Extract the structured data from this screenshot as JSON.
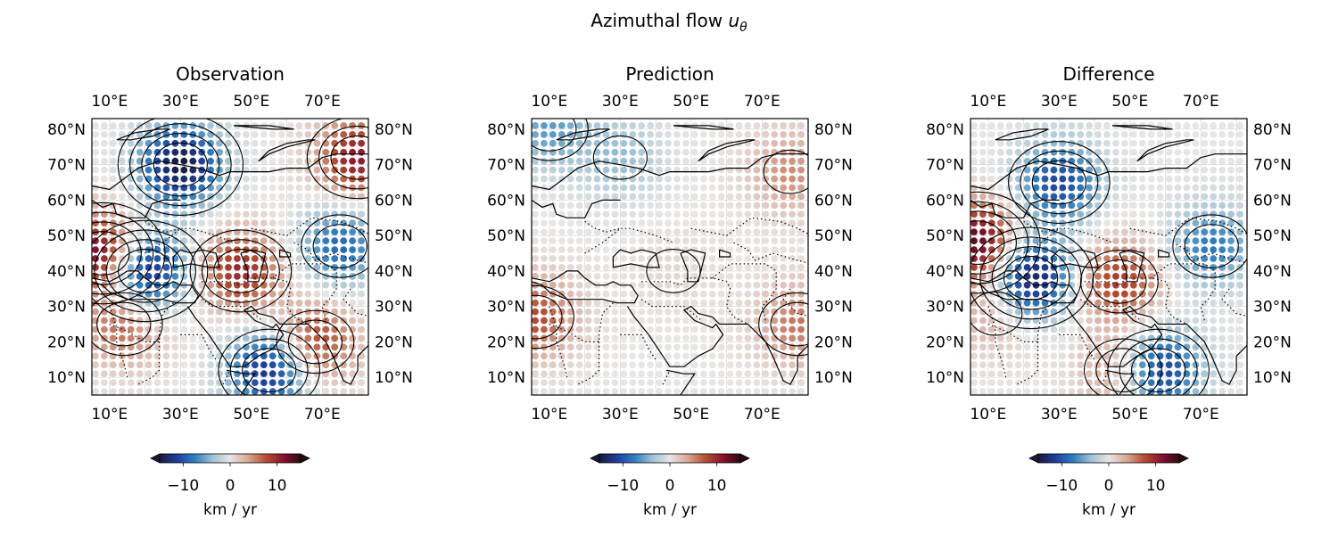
{
  "figure": {
    "title_prefix": "Azimuthal flow ",
    "title_symbol": "u",
    "title_subscript": "θ"
  },
  "colormap": {
    "name": "diverging blue-white-red",
    "stops": [
      "#1a1a3a",
      "#1f3f9e",
      "#2f7fc2",
      "#9fc2d4",
      "#e8e6e4",
      "#d8a898",
      "#b85030",
      "#8a1030",
      "#2a0a10"
    ]
  },
  "chart_data": [
    {
      "type": "heatmap",
      "title": "Observation",
      "x_tick_labels": [
        "10°E",
        "30°E",
        "50°E",
        "70°E"
      ],
      "y_tick_labels": [
        "10°N",
        "20°N",
        "30°N",
        "40°N",
        "50°N",
        "60°N",
        "70°N",
        "80°N"
      ],
      "xlim": [
        5,
        83
      ],
      "ylim": [
        5,
        83
      ],
      "grid": true,
      "colorbar": {
        "label": "km / yr",
        "ticks": [
          "−10",
          "0",
          "10"
        ],
        "range": [
          -15,
          15
        ],
        "extend": "both"
      },
      "field_features": [
        {
          "lon": 30,
          "lat": 70,
          "value": -15
        },
        {
          "lon": 20,
          "lat": 40,
          "value": -15
        },
        {
          "lon": 55,
          "lat": 12,
          "value": -13
        },
        {
          "lon": 75,
          "lat": 47,
          "value": -9
        },
        {
          "lon": 47,
          "lat": 40,
          "value": 10
        },
        {
          "lon": 8,
          "lat": 45,
          "value": 14
        },
        {
          "lon": 80,
          "lat": 72,
          "value": 11
        },
        {
          "lon": 68,
          "lat": 20,
          "value": 9
        },
        {
          "lon": 14,
          "lat": 25,
          "value": 7
        }
      ]
    },
    {
      "type": "heatmap",
      "title": "Prediction",
      "x_tick_labels": [
        "10°E",
        "30°E",
        "50°E",
        "70°E"
      ],
      "y_tick_labels": [
        "10°N",
        "20°N",
        "30°N",
        "40°N",
        "50°N",
        "60°N",
        "70°N",
        "80°N"
      ],
      "xlim": [
        5,
        83
      ],
      "ylim": [
        5,
        83
      ],
      "grid": true,
      "colorbar": {
        "label": "km / yr",
        "ticks": [
          "−10",
          "0",
          "10"
        ],
        "range": [
          -15,
          15
        ],
        "extend": "both"
      },
      "field_features": [
        {
          "lon": 30,
          "lat": 72,
          "value": -4
        },
        {
          "lon": 10,
          "lat": 80,
          "value": -6
        },
        {
          "lon": 6,
          "lat": 27,
          "value": 8
        },
        {
          "lon": 78,
          "lat": 68,
          "value": 5
        },
        {
          "lon": 80,
          "lat": 25,
          "value": 6
        },
        {
          "lon": 45,
          "lat": 40,
          "value": 1
        }
      ]
    },
    {
      "type": "heatmap",
      "title": "Difference",
      "x_tick_labels": [
        "10°E",
        "30°E",
        "50°E",
        "70°E"
      ],
      "y_tick_labels": [
        "10°N",
        "20°N",
        "30°N",
        "40°N",
        "50°N",
        "60°N",
        "70°N",
        "80°N"
      ],
      "xlim": [
        5,
        83
      ],
      "ylim": [
        5,
        83
      ],
      "grid": true,
      "colorbar": {
        "label": "km / yr",
        "ticks": [
          "−10",
          "0",
          "10"
        ],
        "range": [
          -15,
          15
        ],
        "extend": "both"
      },
      "field_features": [
        {
          "lon": 30,
          "lat": 65,
          "value": -11
        },
        {
          "lon": 22,
          "lat": 38,
          "value": -15
        },
        {
          "lon": 58,
          "lat": 12,
          "value": -13
        },
        {
          "lon": 73,
          "lat": 47,
          "value": -8
        },
        {
          "lon": 47,
          "lat": 37,
          "value": 9
        },
        {
          "lon": 7,
          "lat": 48,
          "value": 14
        },
        {
          "lon": 48,
          "lat": 12,
          "value": 6
        },
        {
          "lon": 12,
          "lat": 28,
          "value": 4
        }
      ]
    }
  ]
}
